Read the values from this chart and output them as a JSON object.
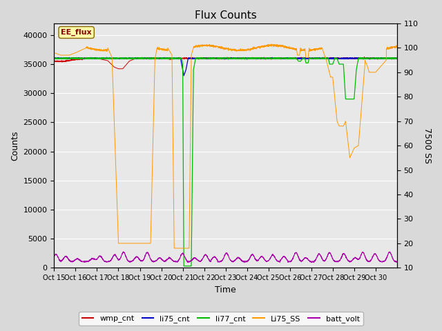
{
  "title": "Flux Counts",
  "xlabel": "Time",
  "ylabel_left": "Counts",
  "ylabel_right": "7500 SS",
  "xlim": [
    0,
    16
  ],
  "ylim_left": [
    0,
    42000
  ],
  "ylim_right": [
    10,
    110
  ],
  "yticks_left": [
    0,
    5000,
    10000,
    15000,
    20000,
    25000,
    30000,
    35000,
    40000
  ],
  "yticks_right": [
    10,
    20,
    30,
    40,
    50,
    60,
    70,
    80,
    90,
    100,
    110
  ],
  "xtick_labels": [
    "Oct 15",
    "Oct 16",
    "Oct 17",
    "Oct 18",
    "Oct 19",
    "Oct 20",
    "Oct 21",
    "Oct 22",
    "Oct 23",
    "Oct 24",
    "Oct 25",
    "Oct 26",
    "Oct 27",
    "Oct 28",
    "Oct 29",
    "Oct 30"
  ],
  "bg_color": "#d9d9d9",
  "plot_bg_color": "#e8e8e8",
  "legend_items": [
    {
      "label": "wmp_cnt",
      "color": "#cc0000"
    },
    {
      "label": "li75_cnt",
      "color": "#0000cc"
    },
    {
      "label": "li77_cnt",
      "color": "#00bb00"
    },
    {
      "label": "Li75_SS",
      "color": "#ff9900"
    },
    {
      "label": "batt_volt",
      "color": "#aa00aa"
    }
  ],
  "ee_flux_box": {
    "label": "EE_flux",
    "facecolor": "#ffffaa",
    "edgecolor": "#886600"
  },
  "grid_color": "#ffffff"
}
